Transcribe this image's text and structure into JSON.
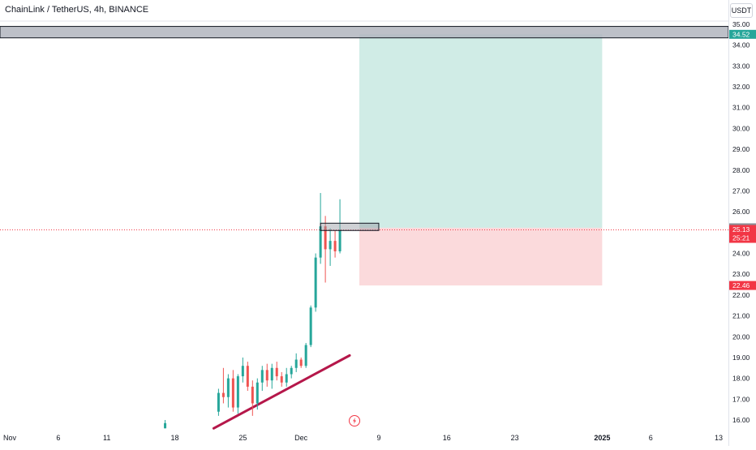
{
  "header": {
    "title": "ChainLink / TetherUS, 4h, BINANCE",
    "unit_button": "USDT"
  },
  "chart_data": {
    "type": "candlestick",
    "y_range": [
      15.6,
      35.25
    ],
    "x_range_days": [
      "2024-10-31",
      "2025-01-14"
    ],
    "y_ticks": [
      "16.00",
      "17.00",
      "18.00",
      "19.00",
      "20.00",
      "21.00",
      "22.00",
      "23.00",
      "24.00",
      "25.00",
      "26.00",
      "27.00",
      "28.00",
      "29.00",
      "30.00",
      "31.00",
      "32.00",
      "33.00",
      "34.00",
      "35.00"
    ],
    "x_ticks": [
      {
        "label": "Nov",
        "date": "2024-11-01"
      },
      {
        "label": "6",
        "date": "2024-11-06"
      },
      {
        "label": "11",
        "date": "2024-11-11"
      },
      {
        "label": "18",
        "date": "2024-11-18"
      },
      {
        "label": "25",
        "date": "2024-11-25"
      },
      {
        "label": "Dec",
        "date": "2024-12-01"
      },
      {
        "label": "9",
        "date": "2024-12-09"
      },
      {
        "label": "16",
        "date": "2024-12-16"
      },
      {
        "label": "23",
        "date": "2024-12-23"
      },
      {
        "label": "2025",
        "date": "2025-01-01"
      },
      {
        "label": "6",
        "date": "2025-01-06"
      },
      {
        "label": "13",
        "date": "2025-01-13"
      }
    ],
    "colors": {
      "up": "#26a69a",
      "down": "#ef5350",
      "trendline": "#b5174a",
      "profit_zone": "#d0ece6",
      "loss_zone": "#fbdadc"
    },
    "price_labels": [
      {
        "text": "34.52",
        "value": 34.52,
        "color": "#26a69a"
      },
      {
        "text": "25.23",
        "value": 25.23,
        "color": "#8a8d95"
      },
      {
        "text": "25.13",
        "value": 25.13,
        "color": "#f23645",
        "sub": "25:21"
      },
      {
        "text": "22.46",
        "value": 22.46,
        "color": "#f23645"
      }
    ],
    "current_price": 25.13,
    "position": {
      "entry": 25.23,
      "target": 34.52,
      "stop": 22.46,
      "start_date": "2024-12-07",
      "end_date": "2025-01-01"
    },
    "resistance_zone": {
      "low": 34.35,
      "high": 34.9
    },
    "entry_zone": {
      "low": 25.1,
      "high": 25.45,
      "start_date": "2024-12-03",
      "end_date": "2024-12-09"
    },
    "trendline": [
      {
        "date": "2024-11-22",
        "value": 15.6
      },
      {
        "date": "2024-12-06",
        "value": 19.1
      }
    ],
    "candles": [
      {
        "t": "2024-11-17",
        "o": 15.6,
        "h": 16.0,
        "l": 15.6,
        "c": 15.85
      },
      {
        "t": "2024-11-22.5",
        "o": 16.4,
        "h": 17.5,
        "l": 16.2,
        "c": 17.3
      },
      {
        "t": "2024-11-23.0",
        "o": 17.3,
        "h": 18.5,
        "l": 16.8,
        "c": 17.1
      },
      {
        "t": "2024-11-23.5",
        "o": 17.1,
        "h": 18.2,
        "l": 16.6,
        "c": 18.0
      },
      {
        "t": "2024-11-24.0",
        "o": 18.0,
        "h": 18.4,
        "l": 16.4,
        "c": 16.6
      },
      {
        "t": "2024-11-24.5",
        "o": 16.6,
        "h": 18.2,
        "l": 16.3,
        "c": 18.1
      },
      {
        "t": "2024-11-25.0",
        "o": 18.1,
        "h": 19.0,
        "l": 17.8,
        "c": 18.6
      },
      {
        "t": "2024-11-25.5",
        "o": 18.6,
        "h": 18.8,
        "l": 17.4,
        "c": 17.6
      },
      {
        "t": "2024-11-26.0",
        "o": 17.6,
        "h": 17.9,
        "l": 16.2,
        "c": 16.8
      },
      {
        "t": "2024-11-26.5",
        "o": 16.8,
        "h": 18.0,
        "l": 16.5,
        "c": 17.8
      },
      {
        "t": "2024-11-27.0",
        "o": 17.8,
        "h": 18.6,
        "l": 17.4,
        "c": 18.4
      },
      {
        "t": "2024-11-27.5",
        "o": 18.4,
        "h": 18.7,
        "l": 17.6,
        "c": 17.9
      },
      {
        "t": "2024-11-28.0",
        "o": 17.9,
        "h": 18.7,
        "l": 17.5,
        "c": 18.5
      },
      {
        "t": "2024-11-28.5",
        "o": 18.5,
        "h": 18.8,
        "l": 17.9,
        "c": 18.1
      },
      {
        "t": "2024-11-29.0",
        "o": 18.1,
        "h": 18.3,
        "l": 17.6,
        "c": 17.8
      },
      {
        "t": "2024-11-29.5",
        "o": 17.8,
        "h": 18.5,
        "l": 17.6,
        "c": 18.2
      },
      {
        "t": "2024-11-30.0",
        "o": 18.2,
        "h": 18.6,
        "l": 18.0,
        "c": 18.5
      },
      {
        "t": "2024-11-30.5",
        "o": 18.5,
        "h": 19.2,
        "l": 18.3,
        "c": 18.9
      },
      {
        "t": "2024-12-01.0",
        "o": 18.9,
        "h": 19.0,
        "l": 18.5,
        "c": 18.6
      },
      {
        "t": "2024-12-01.5",
        "o": 18.6,
        "h": 19.7,
        "l": 18.5,
        "c": 19.6
      },
      {
        "t": "2024-12-02.0",
        "o": 19.6,
        "h": 21.5,
        "l": 19.5,
        "c": 21.4
      },
      {
        "t": "2024-12-02.5",
        "o": 21.4,
        "h": 24.0,
        "l": 21.2,
        "c": 23.8
      },
      {
        "t": "2024-12-03.0",
        "o": 23.8,
        "h": 26.9,
        "l": 23.5,
        "c": 25.3
      },
      {
        "t": "2024-12-03.5",
        "o": 25.3,
        "h": 25.8,
        "l": 22.6,
        "c": 24.2
      },
      {
        "t": "2024-12-04.0",
        "o": 24.2,
        "h": 25.2,
        "l": 23.4,
        "c": 24.6
      },
      {
        "t": "2024-12-04.5",
        "o": 24.6,
        "h": 25.1,
        "l": 23.8,
        "c": 24.1
      },
      {
        "t": "2024-12-05.0",
        "o": 24.1,
        "h": 26.6,
        "l": 24.0,
        "c": 25.13
      }
    ]
  }
}
